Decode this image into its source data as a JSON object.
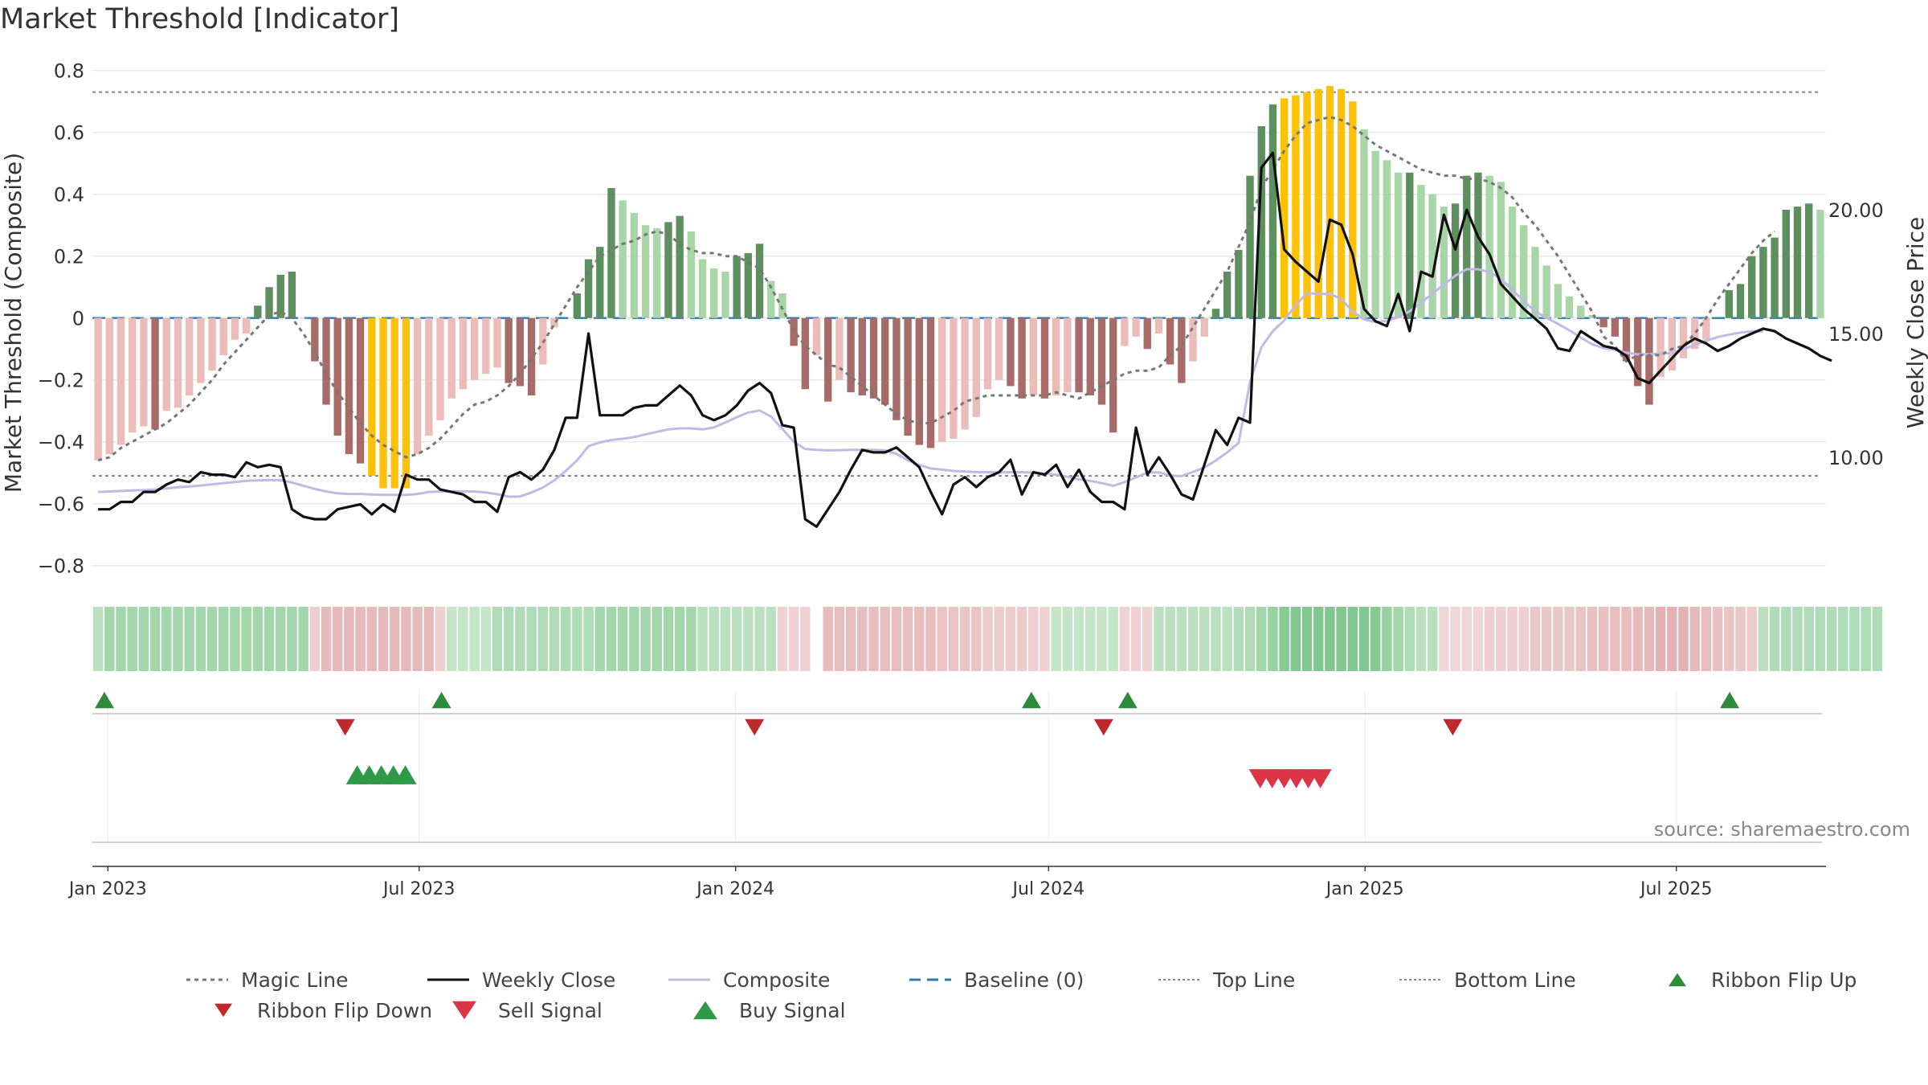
{
  "title": "Market Threshold [Indicator]",
  "source_text": "source: sharemaestro.com",
  "colors": {
    "ribbon_up": "#2e8b3a",
    "ribbon_down": "#c0292c",
    "sell": "#dc3545",
    "buy": "#2e9a48",
    "bar_pos_strong": "#5e8f5e",
    "bar_pos_weak": "#a9d6a6",
    "bar_neg_strong": "#a86c68",
    "bar_neg_weak": "#ecbcb8",
    "bar_extreme": "#ffc107",
    "weekly_close": "#111111",
    "composite_line": "#c2b9e6",
    "magic_line": "#777777",
    "baseline": "#2b7bb9"
  },
  "legend": [
    {
      "label": "Magic Line",
      "icon": "dotted-line-icon"
    },
    {
      "label": "Weekly Close",
      "icon": "solid-line-icon"
    },
    {
      "label": "Composite",
      "icon": "lavender-line-icon"
    },
    {
      "label": "Baseline (0)",
      "icon": "dashed-line-icon"
    },
    {
      "label": "Top Line",
      "icon": "fine-dotted-line-icon"
    },
    {
      "label": "Bottom Line",
      "icon": "fine-dotted-line-icon"
    },
    {
      "label": "Ribbon Flip Up",
      "icon": "triangle-up-icon"
    },
    {
      "label": "Ribbon Flip Down",
      "icon": "triangle-down-icon"
    },
    {
      "label": "Sell Signal",
      "icon": "triangle-down-icon"
    },
    {
      "label": "Buy Signal",
      "icon": "triangle-up-icon"
    }
  ],
  "chart_data": {
    "type": "bar",
    "ylabel": "Market Threshold (Composite)",
    "ylabel_right": "Weekly Close Price",
    "ylim": [
      -0.85,
      0.82
    ],
    "ylim_right": [
      5.0,
      25.88
    ],
    "yticks": [
      0.8,
      0.6,
      0.4,
      0.2,
      0,
      -0.2,
      -0.4,
      -0.6,
      -0.8
    ],
    "ytick_labels": [
      "0.8",
      "0.6",
      "0.4",
      "0.2",
      "0",
      "−0.2",
      "−0.4",
      "−0.6",
      "−0.8"
    ],
    "yticks_right": [
      20.0,
      15.0,
      10.0
    ],
    "ytick_right_labels": [
      "20.00",
      "15.00",
      "10.00"
    ],
    "top_line": 0.73,
    "bottom_line": -0.51,
    "x_start": "2022-12-23",
    "x_end": "2025-09-26",
    "xticks": [
      "Jan 2023",
      "Jul 2023",
      "Jan 2024",
      "Jul 2024",
      "Jan 2025",
      "Jul 2025"
    ],
    "series": [
      {
        "name": "Composite",
        "values": [
          -0.46,
          -0.44,
          -0.41,
          -0.37,
          -0.35,
          -0.36,
          -0.3,
          -0.29,
          -0.25,
          -0.21,
          -0.17,
          -0.12,
          -0.07,
          -0.05,
          0.04,
          0.1,
          0.14,
          0.15,
          0.0,
          -0.14,
          -0.28,
          -0.38,
          -0.44,
          -0.47,
          -0.51,
          -0.55,
          -0.55,
          -0.55,
          -0.44,
          -0.38,
          -0.33,
          -0.26,
          -0.23,
          -0.2,
          -0.18,
          -0.16,
          -0.21,
          -0.22,
          -0.25,
          -0.15,
          -0.03,
          0.0,
          0.08,
          0.19,
          0.23,
          0.42,
          0.38,
          0.34,
          0.3,
          0.29,
          0.31,
          0.33,
          0.28,
          0.19,
          0.16,
          0.15,
          0.2,
          0.21,
          0.24,
          0.12,
          0.08,
          -0.09,
          -0.23,
          -0.12,
          -0.27,
          -0.2,
          -0.24,
          -0.25,
          -0.26,
          -0.28,
          -0.33,
          -0.38,
          -0.41,
          -0.42,
          -0.4,
          -0.39,
          -0.36,
          -0.32,
          -0.23,
          -0.2,
          -0.22,
          -0.26,
          -0.25,
          -0.26,
          -0.25,
          -0.24,
          -0.24,
          -0.25,
          -0.28,
          -0.37,
          -0.09,
          -0.06,
          -0.1,
          -0.05,
          -0.15,
          -0.21,
          -0.14,
          -0.06,
          0.03,
          0.15,
          0.22,
          0.46,
          0.62,
          0.69,
          0.71,
          0.72,
          0.73,
          0.74,
          0.75,
          0.74,
          0.7,
          0.61,
          0.54,
          0.51,
          0.47,
          0.47,
          0.43,
          0.4,
          0.36,
          0.37,
          0.46,
          0.47,
          0.46,
          0.44,
          0.36,
          0.3,
          0.23,
          0.17,
          0.11,
          0.07,
          0.04,
          0.01,
          -0.03,
          -0.06,
          -0.14,
          -0.22,
          -0.28,
          -0.19,
          -0.17,
          -0.13,
          -0.1,
          -0.07,
          0.0,
          0.09,
          0.11,
          0.2,
          0.23,
          0.26,
          0.35,
          0.36,
          0.37,
          0.35
        ]
      },
      {
        "name": "Weekly Close",
        "values": [
          7.9,
          7.9,
          8.2,
          8.2,
          8.6,
          8.6,
          8.9,
          9.1,
          9.0,
          9.4,
          9.3,
          9.3,
          9.2,
          9.8,
          9.6,
          9.7,
          9.6,
          7.9,
          7.6,
          7.5,
          7.5,
          7.9,
          8.0,
          8.1,
          7.7,
          8.1,
          7.8,
          9.3,
          9.1,
          9.1,
          8.7,
          8.6,
          8.5,
          8.2,
          8.2,
          7.8,
          9.2,
          9.4,
          9.1,
          9.5,
          10.3,
          11.6,
          11.6,
          15.0,
          11.7,
          11.7,
          11.7,
          12.0,
          12.1,
          12.1,
          12.5,
          12.9,
          12.5,
          11.7,
          11.5,
          11.7,
          12.1,
          12.7,
          13.0,
          12.6,
          11.3,
          11.2,
          7.5,
          7.2,
          7.9,
          8.6,
          9.5,
          10.3,
          10.2,
          10.2,
          10.4,
          10.0,
          9.6,
          8.6,
          7.7,
          8.9,
          9.2,
          8.8,
          9.2,
          9.4,
          9.9,
          8.5,
          9.4,
          9.3,
          9.7,
          8.8,
          9.5,
          8.6,
          8.2,
          8.2,
          7.9,
          11.2,
          9.3,
          10.0,
          9.3,
          8.5,
          8.3,
          9.7,
          11.1,
          10.5,
          11.6,
          11.4,
          21.7,
          22.3,
          18.4,
          17.9,
          17.5,
          17.1,
          19.6,
          19.4,
          18.2,
          16.0,
          15.5,
          15.3,
          16.6,
          15.1,
          17.5,
          17.3,
          19.8,
          18.4,
          20.0,
          18.9,
          18.2,
          17.0,
          16.5,
          16.0,
          15.6,
          15.2,
          14.4,
          14.3,
          15.1,
          14.8,
          14.5,
          14.4,
          14.1,
          13.2,
          13.0,
          13.5,
          14.0,
          14.5,
          14.8,
          14.6,
          14.3,
          14.5,
          14.8,
          15.0,
          15.2,
          15.1,
          14.8,
          14.6,
          14.4,
          14.1,
          13.9
        ]
      },
      {
        "name": "Composite",
        "values": [
          8.6,
          8.62,
          8.64,
          8.66,
          8.68,
          8.7,
          8.74,
          8.79,
          8.82,
          8.86,
          8.91,
          8.96,
          9.0,
          9.05,
          9.07,
          9.08,
          9.08,
          8.98,
          8.85,
          8.72,
          8.62,
          8.55,
          8.52,
          8.52,
          8.5,
          8.48,
          8.48,
          8.48,
          8.52,
          8.6,
          8.62,
          8.62,
          8.62,
          8.62,
          8.58,
          8.51,
          8.41,
          8.42,
          8.58,
          8.78,
          9.07,
          9.45,
          9.88,
          10.45,
          10.6,
          10.7,
          10.75,
          10.82,
          10.93,
          11.03,
          11.13,
          11.17,
          11.17,
          11.13,
          11.21,
          11.41,
          11.62,
          11.81,
          11.89,
          11.65,
          11.15,
          10.62,
          10.34,
          10.3,
          10.28,
          10.29,
          10.3,
          10.3,
          10.3,
          10.28,
          10.14,
          9.88,
          9.69,
          9.55,
          9.5,
          9.45,
          9.43,
          9.4,
          9.4,
          9.39,
          9.4,
          9.4,
          9.38,
          9.34,
          9.3,
          9.21,
          9.11,
          9.05,
          8.96,
          8.85,
          9.0,
          9.19,
          9.39,
          9.39,
          9.26,
          9.24,
          9.41,
          9.59,
          9.87,
          10.2,
          10.58,
          13.03,
          14.45,
          15.1,
          15.53,
          16.14,
          16.64,
          16.6,
          16.6,
          16.4,
          15.89,
          15.57,
          15.47,
          15.51,
          15.67,
          15.9,
          16.25,
          16.62,
          16.98,
          17.34,
          17.6,
          17.6,
          17.49,
          17.21,
          16.77,
          16.31,
          15.9,
          15.63,
          15.39,
          15.13,
          14.84,
          14.57,
          14.41,
          14.35,
          14.23,
          14.16,
          14.17,
          14.18,
          14.22,
          14.37,
          14.54,
          14.71,
          14.86,
          14.96,
          15.04,
          15.09,
          15.09
        ]
      },
      {
        "name": "Magic Line",
        "values": [
          -0.46,
          -0.45,
          -0.42,
          -0.4,
          -0.38,
          -0.36,
          -0.34,
          -0.31,
          -0.28,
          -0.24,
          -0.2,
          -0.15,
          -0.11,
          -0.07,
          -0.03,
          0.01,
          0.02,
          0.0,
          -0.05,
          -0.11,
          -0.18,
          -0.24,
          -0.29,
          -0.34,
          -0.38,
          -0.41,
          -0.43,
          -0.45,
          -0.44,
          -0.42,
          -0.39,
          -0.35,
          -0.31,
          -0.28,
          -0.27,
          -0.25,
          -0.22,
          -0.18,
          -0.13,
          -0.08,
          -0.02,
          0.04,
          0.1,
          0.15,
          0.2,
          0.22,
          0.24,
          0.25,
          0.27,
          0.28,
          0.27,
          0.24,
          0.22,
          0.21,
          0.21,
          0.2,
          0.2,
          0.18,
          0.16,
          0.1,
          0.03,
          -0.04,
          -0.09,
          -0.12,
          -0.15,
          -0.16,
          -0.19,
          -0.22,
          -0.25,
          -0.28,
          -0.31,
          -0.33,
          -0.34,
          -0.34,
          -0.32,
          -0.3,
          -0.27,
          -0.26,
          -0.25,
          -0.25,
          -0.25,
          -0.25,
          -0.25,
          -0.25,
          -0.24,
          -0.25,
          -0.26,
          -0.24,
          -0.22,
          -0.2,
          -0.18,
          -0.17,
          -0.17,
          -0.16,
          -0.12,
          -0.09,
          -0.03,
          0.03,
          0.09,
          0.15,
          0.23,
          0.31,
          0.42,
          0.48,
          0.54,
          0.59,
          0.63,
          0.64,
          0.65,
          0.64,
          0.62,
          0.59,
          0.56,
          0.54,
          0.52,
          0.5,
          0.48,
          0.47,
          0.46,
          0.46,
          0.45,
          0.45,
          0.44,
          0.42,
          0.39,
          0.34,
          0.3,
          0.25,
          0.2,
          0.14,
          0.08,
          0.02,
          -0.06,
          -0.09,
          -0.14,
          -0.12,
          -0.12,
          -0.12,
          -0.1,
          -0.09,
          -0.05,
          0.0,
          0.06,
          0.11,
          0.16,
          0.21,
          0.25,
          0.28
        ]
      }
    ],
    "ribbon": [
      0.4,
      0.6,
      0.6,
      0.6,
      0.6,
      0.6,
      0.6,
      0.6,
      0.6,
      0.6,
      0.6,
      0.6,
      0.6,
      0.6,
      0.6,
      0.6,
      0.6,
      0.6,
      0.6,
      -0.3,
      -0.6,
      -0.6,
      -0.6,
      -0.6,
      -0.6,
      -0.6,
      -0.6,
      -0.6,
      -0.6,
      -0.6,
      -0.3,
      0.3,
      0.3,
      0.3,
      0.3,
      0.5,
      0.5,
      0.5,
      0.5,
      0.5,
      0.5,
      0.5,
      0.5,
      0.5,
      0.6,
      0.6,
      0.6,
      0.6,
      0.6,
      0.6,
      0.6,
      0.6,
      0.6,
      0.4,
      0.4,
      0.4,
      0.4,
      0.4,
      0.4,
      0.4,
      -0.25,
      -0.25,
      -0.25,
      0,
      -0.55,
      -0.55,
      -0.55,
      -0.55,
      -0.55,
      -0.55,
      -0.55,
      -0.55,
      -0.55,
      -0.55,
      -0.45,
      -0.45,
      -0.45,
      -0.45,
      -0.35,
      -0.35,
      -0.35,
      -0.35,
      -0.3,
      -0.25,
      0.3,
      0.3,
      0.3,
      0.3,
      0.3,
      0.3,
      -0.25,
      -0.25,
      -0.25,
      0.4,
      0.4,
      0.4,
      0.4,
      0.4,
      0.4,
      0.4,
      0.45,
      0.5,
      0.6,
      0.7,
      0.85,
      0.9,
      0.9,
      0.9,
      0.9,
      0.9,
      0.9,
      0.9,
      0.85,
      0.7,
      0.6,
      0.5,
      0.4,
      0.4,
      -0.2,
      -0.2,
      -0.2,
      -0.2,
      -0.3,
      -0.3,
      -0.3,
      -0.3,
      -0.4,
      -0.4,
      -0.4,
      -0.4,
      -0.45,
      -0.5,
      -0.5,
      -0.55,
      -0.55,
      -0.6,
      -0.6,
      -0.7,
      -0.7,
      -0.7,
      -0.6,
      -0.55,
      -0.5,
      -0.45,
      -0.4,
      -0.35,
      0.4,
      0.5,
      0.5,
      0.5,
      0.5,
      0.5,
      0.5,
      0.5,
      0.5,
      0.5,
      0.5
    ],
    "ribbon_flip_up": [
      "2022-12-30",
      "2023-07-14",
      "2024-06-21",
      "2024-08-16",
      "2025-08-01"
    ],
    "ribbon_flip_down": [
      "2023-05-19",
      "2024-01-12",
      "2024-08-02",
      "2025-02-21"
    ],
    "buy_signals": [
      "2023-05-26",
      "2023-06-02",
      "2023-06-09",
      "2023-06-16",
      "2023-06-23"
    ],
    "sell_signals": [
      "2024-11-01",
      "2024-11-08",
      "2024-11-15",
      "2024-11-22",
      "2024-11-29",
      "2024-12-06"
    ]
  }
}
